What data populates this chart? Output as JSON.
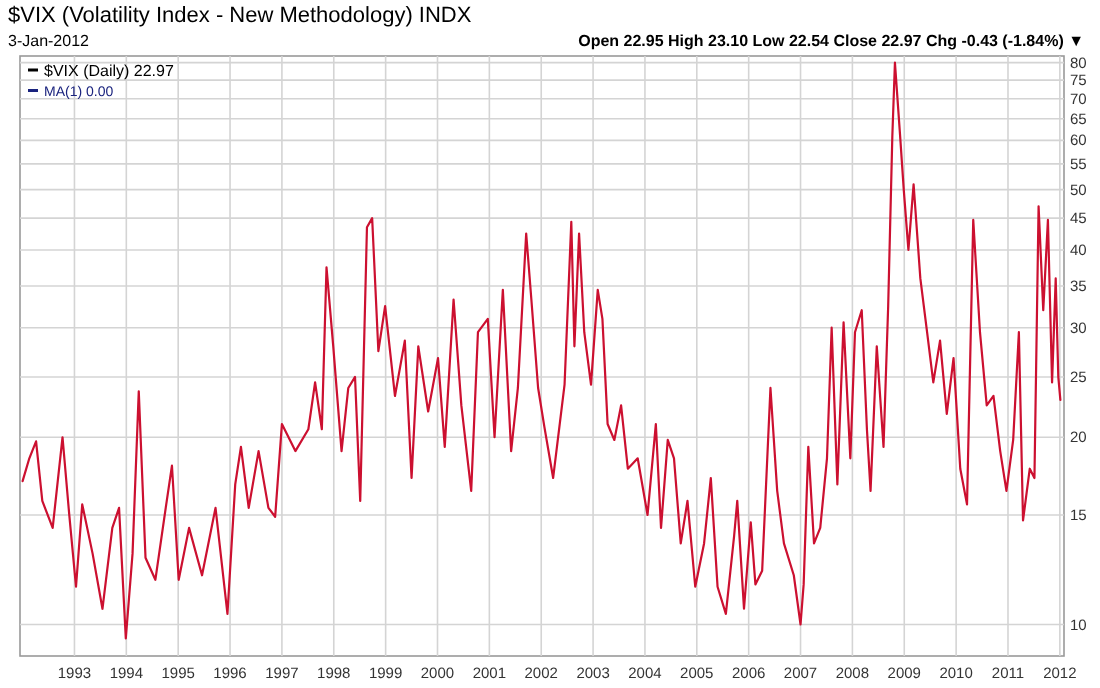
{
  "chart_data": {
    "type": "line",
    "title": "$VIX (Volatility Index - New Methodology) INDX",
    "subtitle": "3-Jan-2012",
    "annotations": [
      "Open 22.95 High 23.10 Low 22.54 Close 22.97 Chg -0.43 (-1.84%) ▼",
      "MA(1) 0.00"
    ],
    "legend": "top left",
    "grid": true,
    "log": "y",
    "line_style": "solid",
    "xlim": [
      1991.95,
      2012.08
    ],
    "xticks": [
      1993,
      1994,
      1995,
      1996,
      1997,
      1998,
      1999,
      2000,
      2001,
      2002,
      2003,
      2004,
      2005,
      2006,
      2007,
      2008,
      2009,
      2010,
      2011,
      2012
    ],
    "ylim": [
      8.9,
      82
    ],
    "yticks": [
      10,
      15,
      20,
      25,
      30,
      35,
      40,
      45,
      50,
      55,
      60,
      65,
      70,
      75,
      80
    ],
    "series": [
      {
        "name": "$VIX (Daily) 22.97",
        "color": "#cc1030",
        "x": [
          1992.0,
          1992.13,
          1992.26,
          1992.38,
          1992.58,
          1992.77,
          1992.9,
          1993.03,
          1993.15,
          1993.35,
          1993.54,
          1993.73,
          1993.86,
          1993.99,
          1994.12,
          1994.24,
          1994.37,
          1994.56,
          1994.76,
          1994.88,
          1995.01,
          1995.21,
          1995.46,
          1995.72,
          1995.95,
          1996.1,
          1996.21,
          1996.36,
          1996.55,
          1996.74,
          1996.87,
          1997.0,
          1997.26,
          1997.51,
          1997.64,
          1997.77,
          1997.86,
          1997.99,
          1998.15,
          1998.28,
          1998.41,
          1998.51,
          1998.64,
          1998.74,
          1998.86,
          1998.99,
          1999.18,
          1999.37,
          1999.5,
          1999.63,
          1999.82,
          2000.01,
          2000.14,
          2000.31,
          2000.46,
          2000.65,
          2000.78,
          2000.97,
          2001.1,
          2001.26,
          2001.42,
          2001.55,
          2001.71,
          2001.81,
          2001.94,
          2002.06,
          2002.23,
          2002.45,
          2002.58,
          2002.64,
          2002.73,
          2002.83,
          2002.96,
          2003.09,
          2003.18,
          2003.28,
          2003.41,
          2003.54,
          2003.67,
          2003.86,
          2004.05,
          2004.21,
          2004.31,
          2004.44,
          2004.56,
          2004.69,
          2004.82,
          2004.97,
          2005.14,
          2005.27,
          2005.4,
          2005.56,
          2005.72,
          2005.78,
          2005.91,
          2006.04,
          2006.13,
          2006.26,
          2006.42,
          2006.55,
          2006.68,
          2006.87,
          2007.0,
          2007.06,
          2007.15,
          2007.26,
          2007.38,
          2007.51,
          2007.6,
          2007.71,
          2007.83,
          2007.96,
          2008.05,
          2008.18,
          2008.28,
          2008.35,
          2008.47,
          2008.6,
          2008.69,
          2008.77,
          2008.82,
          2008.92,
          2008.99,
          2009.08,
          2009.18,
          2009.31,
          2009.44,
          2009.56,
          2009.69,
          2009.82,
          2009.95,
          2010.08,
          2010.21,
          2010.33,
          2010.46,
          2010.59,
          2010.72,
          2010.85,
          2010.97,
          2011.1,
          2011.21,
          2011.29,
          2011.42,
          2011.51,
          2011.59,
          2011.68,
          2011.77,
          2011.85,
          2011.92,
          2011.97,
          2012.01
        ],
        "values": [
          17,
          18.5,
          19.7,
          15.8,
          14.3,
          20,
          15,
          11.5,
          15.6,
          13,
          10.6,
          14.3,
          15.4,
          9.5,
          13,
          23.7,
          12.8,
          11.8,
          15.4,
          18,
          11.8,
          14.3,
          12,
          15.4,
          10.4,
          16.8,
          19.3,
          15.4,
          19,
          15.4,
          14.9,
          21,
          19,
          20.6,
          24.5,
          20.6,
          37.5,
          28,
          19,
          24,
          25,
          15.8,
          43.5,
          45,
          27.5,
          32.5,
          23.3,
          28.6,
          17.2,
          28,
          22,
          26.8,
          19.3,
          33.3,
          22.5,
          16.4,
          29.5,
          31,
          20,
          34.5,
          19,
          24,
          42.5,
          33.3,
          24,
          20.8,
          17.2,
          24.3,
          44.4,
          28,
          42.5,
          29.5,
          24.3,
          34.5,
          31,
          21,
          19.8,
          22.5,
          17.8,
          18.5,
          15,
          21,
          14.3,
          19.8,
          18.5,
          13.5,
          15.8,
          11.5,
          13.5,
          17.2,
          11.5,
          10.4,
          13.9,
          15.8,
          10.6,
          14.6,
          11.6,
          12.2,
          24,
          16.4,
          13.5,
          12,
          10,
          11.6,
          19.3,
          13.5,
          14.3,
          18.5,
          30,
          16.8,
          30.6,
          18.5,
          29.5,
          32,
          20.6,
          16.4,
          28,
          19.3,
          32.5,
          61,
          80,
          61,
          50,
          40,
          51,
          36,
          29.5,
          24.5,
          28.6,
          21.8,
          26.8,
          17.8,
          15.6,
          44.7,
          29.5,
          22.5,
          23.3,
          19,
          16.4,
          19.8,
          29.5,
          14.7,
          17.8,
          17.2,
          47,
          32,
          44.7,
          24.5,
          36,
          25,
          22.97
        ]
      }
    ]
  }
}
